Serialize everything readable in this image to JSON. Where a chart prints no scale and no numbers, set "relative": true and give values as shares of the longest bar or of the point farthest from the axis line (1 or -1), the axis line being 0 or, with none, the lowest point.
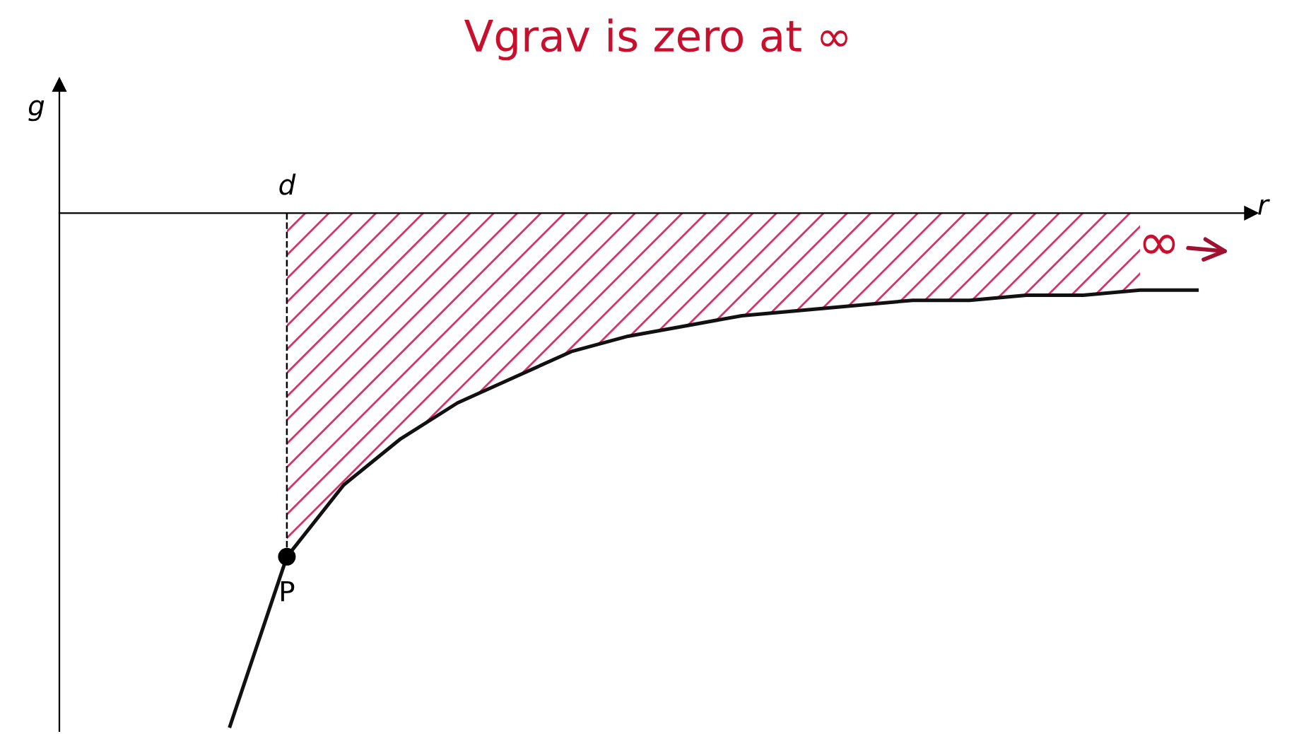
{
  "chart_data": {
    "type": "line",
    "title": "Vgrav is zero at ∞",
    "xlabel": "r",
    "relative": true,
    "categories": [
      null,
      null,
      null,
      null,
      null,
      null,
      null,
      null,
      null,
      null,
      null,
      null,
      null,
      null,
      null,
      null,
      null,
      null
    ],
    "series": [
      {
        "color": "#111111",
        "values": [
          -1,
          -0.67,
          -0.53,
          -0.44,
          -0.37,
          -0.32,
          -0.27,
          -0.24,
          -0.22,
          -0.2,
          -0.19,
          -0.18,
          -0.17,
          -0.17,
          -0.16,
          -0.16,
          -0.15,
          -0.15
        ]
      }
    ],
    "ref_lines": [
      {
        "axis": "x",
        "value": "d",
        "line_style": "dashed",
        "color": "#000000"
      }
    ],
    "annotations": [
      {
        "text": "P",
        "y": -0.67
      },
      "g",
      "∞"
    ],
    "legend": false,
    "grid": false
  }
}
